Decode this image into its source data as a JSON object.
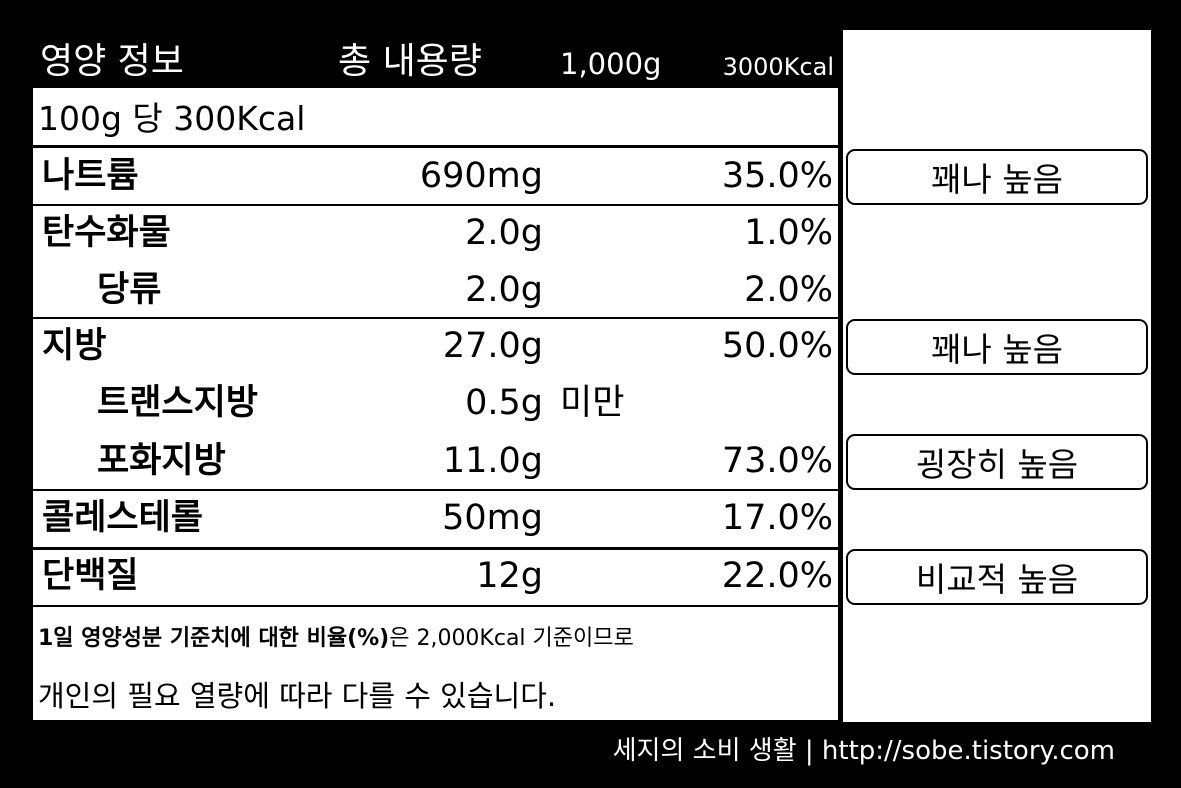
{
  "header": {
    "title": "영양 정보",
    "total_label": "총 내용량",
    "total_weight": "1,000g",
    "total_kcal": "3000Kcal"
  },
  "serving": "100g 당 300Kcal",
  "rows": [
    {
      "name": "나트륨",
      "amount": "690mg",
      "percent": "35.0%",
      "note": "꽤나 높음"
    },
    {
      "name": "탄수화물",
      "amount": "2.0g",
      "percent": "1.0%"
    },
    {
      "name": "당류",
      "amount": "2.0g",
      "percent": "2.0%"
    },
    {
      "name": "지방",
      "amount": "27.0g",
      "percent": "50.0%",
      "note": "꽤나 높음"
    },
    {
      "name": "트랜스지방",
      "amount": "0.5g",
      "qualifier": "미만"
    },
    {
      "name": "포화지방",
      "amount": "11.0g",
      "percent": "73.0%",
      "note": "굉장히 높음"
    },
    {
      "name": "콜레스테롤",
      "amount": "50mg",
      "percent": "17.0%"
    },
    {
      "name": "단백질",
      "amount": "12g",
      "percent": "22.0%",
      "note": "비교적 높음"
    }
  ],
  "footnote": {
    "bold": "1일 영양성분 기준치에 대한 비율(%)",
    "normal": "은 2,000Kcal 기준이므로",
    "line2": "개인의 필요 열량에 따라 다를 수 있습니다."
  },
  "footer": "세지의 소비 생활 | http://sobe.tistory.com"
}
